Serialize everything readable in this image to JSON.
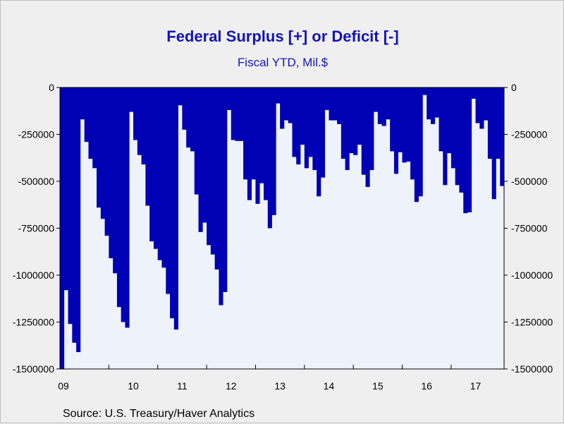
{
  "header": {
    "title": "Federal Surplus [+] or Deficit [-]",
    "subtitle": "Fiscal YTD, Mil.$"
  },
  "footer": {
    "source": "Source:  U.S. Treasury/Haver Analytics"
  },
  "colors": {
    "bar": "#0000b4",
    "plot_background": "#eef2fa",
    "page_background": "#efefef",
    "title": "#1414b4"
  },
  "chart_data": {
    "type": "bar",
    "title": "Federal Surplus [+] or Deficit [-]",
    "subtitle": "Fiscal YTD, Mil.$",
    "xlabel": "",
    "ylabel": "",
    "ylim": [
      -1500000,
      0
    ],
    "y_ticks": [
      0,
      -250000,
      -500000,
      -750000,
      -1000000,
      -1250000,
      -1500000
    ],
    "y_tick_labels": [
      "0",
      "-250000",
      "-500000",
      "-750000",
      "-1000000",
      "-1250000",
      "-1500000"
    ],
    "y_axis_both_sides": true,
    "x_tick_labels": [
      "09",
      "10",
      "11",
      "12",
      "13",
      "14",
      "15",
      "16",
      "17"
    ],
    "first_month": "2009-01",
    "frequency": "monthly",
    "grid": false,
    "legend": "none",
    "series": [
      {
        "values": [
          -1500000,
          -1080000,
          -1260000,
          -1360000,
          -1410000,
          -170000,
          -290000,
          -380000,
          -430000,
          -640000,
          -700000,
          -790000,
          -910000,
          -990000,
          -1170000,
          -1250000,
          -1280000,
          -130000,
          -280000,
          -360000,
          -410000,
          -630000,
          -820000,
          -860000,
          -920000,
          -960000,
          -1100000,
          -1230000,
          -1290000,
          -95000,
          -225000,
          -320000,
          -340000,
          -570000,
          -770000,
          -720000,
          -840000,
          -890000,
          -970000,
          -1160000,
          -1090000,
          -120000,
          -280000,
          -285000,
          -285000,
          -490000,
          -600000,
          -490000,
          -620000,
          -510000,
          -600000,
          -750000,
          -680000,
          -85000,
          -220000,
          -175000,
          -190000,
          -370000,
          -410000,
          -305000,
          -430000,
          -370000,
          -440000,
          -580000,
          -480000,
          -120000,
          -175000,
          -175000,
          -195000,
          -380000,
          -440000,
          -350000,
          -360000,
          -305000,
          -465000,
          -530000,
          -440000,
          -130000,
          -195000,
          -205000,
          -170000,
          -340000,
          -460000,
          -345000,
          -400000,
          -395000,
          -490000,
          -610000,
          -580000,
          -40000,
          -170000,
          -195000,
          -160000,
          -340000,
          -520000,
          -350000,
          -430000,
          -520000,
          -560000,
          -670000,
          -665000,
          -60000,
          -190000,
          -220000,
          -175000,
          -380000,
          -595000,
          -380000,
          -525000
        ]
      }
    ]
  }
}
